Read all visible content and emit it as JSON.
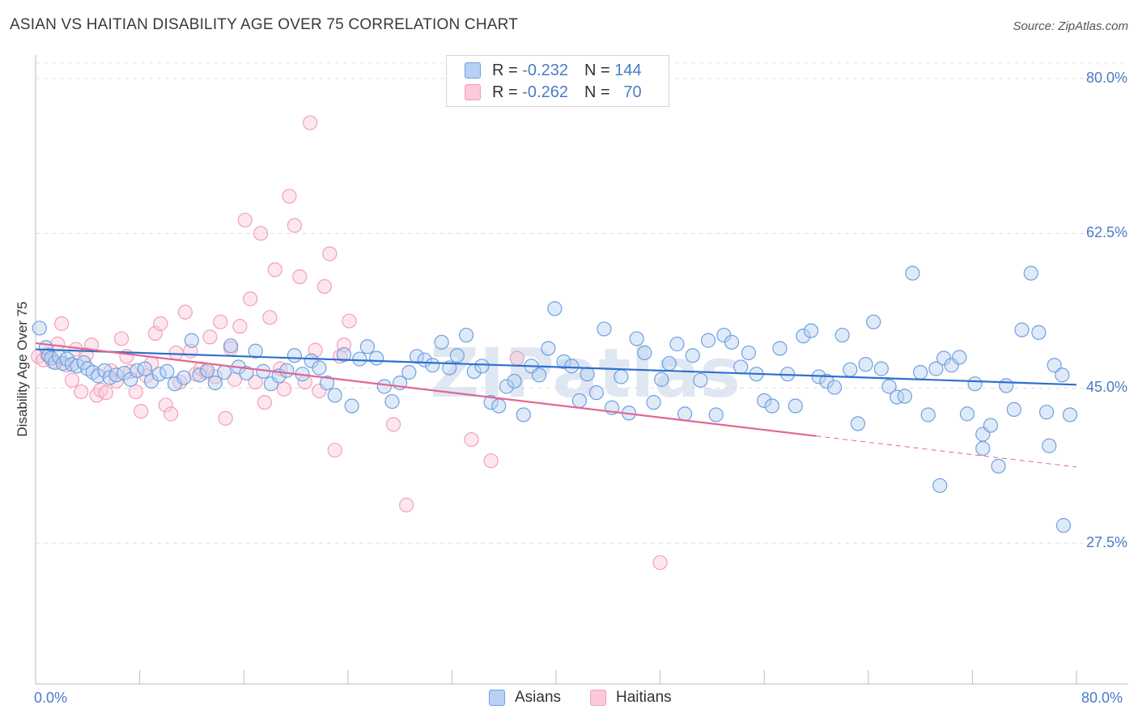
{
  "title": "ASIAN VS HAITIAN DISABILITY AGE OVER 75 CORRELATION CHART",
  "source": "Source: ZipAtlas.com",
  "chart_data": {
    "type": "scatter",
    "title": "ASIAN VS HAITIAN DISABILITY AGE OVER 75 CORRELATION CHART",
    "xlabel": "",
    "ylabel": "Disability Age Over 75",
    "xlim": [
      0,
      80
    ],
    "ylim": [
      10,
      82.5
    ],
    "x_tick_labels": [
      "0.0%",
      "80.0%"
    ],
    "y_ticks": [
      27.5,
      45.0,
      62.5,
      80.0
    ],
    "y_tick_labels": [
      "27.5%",
      "45.0%",
      "62.5%",
      "80.0%"
    ],
    "grid": "horizontal dashed",
    "legend_placement": "top-center",
    "colors": {
      "asians": "#6fa0e0",
      "asians_line": "#2f6fcf",
      "haitians": "#f0a0bc",
      "haitians_line": "#e06890"
    },
    "legend": [
      {
        "name": "Asians",
        "r_label": "R =",
        "r_value": "-0.232",
        "n_label": "N =",
        "n_value": "144"
      },
      {
        "name": "Haitians",
        "r_label": "R =",
        "r_value": "-0.262",
        "n_label": "N =",
        "n_value": "70"
      }
    ],
    "series": [
      {
        "name": "Asians",
        "trend": {
          "x": [
            0,
            80
          ],
          "y": [
            49.4,
            45.4
          ]
        },
        "points": [
          [
            0.3,
            51.8
          ],
          [
            0.8,
            49.6
          ],
          [
            1.0,
            48.7
          ],
          [
            1.2,
            48.4
          ],
          [
            1.5,
            47.9
          ],
          [
            1.8,
            48.6
          ],
          [
            2.1,
            47.8
          ],
          [
            2.4,
            48.3
          ],
          [
            2.8,
            47.7
          ],
          [
            3.2,
            47.5
          ],
          [
            3.7,
            47.9
          ],
          [
            4.0,
            47.2
          ],
          [
            4.4,
            46.8
          ],
          [
            4.8,
            46.4
          ],
          [
            5.3,
            47.0
          ],
          [
            5.7,
            46.2
          ],
          [
            6.2,
            46.5
          ],
          [
            6.8,
            46.7
          ],
          [
            7.3,
            46.0
          ],
          [
            7.8,
            47.0
          ],
          [
            8.4,
            47.2
          ],
          [
            8.9,
            45.8
          ],
          [
            9.5,
            46.6
          ],
          [
            10.1,
            46.9
          ],
          [
            10.7,
            45.5
          ],
          [
            11.4,
            46.2
          ],
          [
            12.0,
            50.4
          ],
          [
            12.6,
            46.5
          ],
          [
            13.2,
            47.0
          ],
          [
            13.8,
            45.6
          ],
          [
            14.5,
            46.8
          ],
          [
            15.0,
            49.8
          ],
          [
            15.6,
            47.4
          ],
          [
            16.2,
            46.7
          ],
          [
            16.9,
            49.2
          ],
          [
            17.5,
            46.9
          ],
          [
            18.1,
            45.5
          ],
          [
            18.7,
            46.4
          ],
          [
            19.3,
            47.0
          ],
          [
            19.9,
            48.7
          ],
          [
            20.5,
            46.6
          ],
          [
            21.2,
            48.1
          ],
          [
            21.8,
            47.3
          ],
          [
            22.4,
            45.6
          ],
          [
            23.0,
            44.2
          ],
          [
            23.7,
            48.8
          ],
          [
            24.3,
            43.0
          ],
          [
            24.9,
            48.3
          ],
          [
            25.5,
            49.7
          ],
          [
            26.2,
            48.4
          ],
          [
            26.8,
            45.2
          ],
          [
            27.4,
            43.5
          ],
          [
            28.0,
            45.6
          ],
          [
            28.7,
            46.8
          ],
          [
            29.3,
            48.6
          ],
          [
            29.9,
            48.2
          ],
          [
            30.5,
            47.6
          ],
          [
            31.2,
            50.2
          ],
          [
            31.8,
            47.3
          ],
          [
            32.4,
            48.7
          ],
          [
            33.1,
            51.0
          ],
          [
            33.7,
            46.9
          ],
          [
            34.3,
            47.5
          ],
          [
            35.0,
            43.4
          ],
          [
            35.6,
            43.0
          ],
          [
            36.2,
            45.2
          ],
          [
            36.8,
            45.8
          ],
          [
            37.5,
            42.0
          ],
          [
            38.1,
            47.5
          ],
          [
            38.7,
            46.5
          ],
          [
            39.4,
            49.5
          ],
          [
            39.9,
            54.0
          ],
          [
            40.6,
            48.0
          ],
          [
            41.2,
            47.5
          ],
          [
            41.8,
            43.6
          ],
          [
            42.4,
            46.6
          ],
          [
            43.1,
            44.5
          ],
          [
            43.7,
            51.7
          ],
          [
            44.3,
            42.8
          ],
          [
            45.0,
            46.3
          ],
          [
            45.6,
            42.2
          ],
          [
            46.2,
            50.6
          ],
          [
            46.8,
            49.0
          ],
          [
            47.5,
            43.4
          ],
          [
            48.1,
            46.0
          ],
          [
            48.7,
            47.8
          ],
          [
            49.3,
            50.0
          ],
          [
            49.9,
            42.1
          ],
          [
            50.5,
            48.7
          ],
          [
            51.1,
            45.9
          ],
          [
            51.7,
            50.4
          ],
          [
            52.3,
            42.0
          ],
          [
            52.9,
            51.0
          ],
          [
            53.5,
            50.2
          ],
          [
            54.2,
            47.4
          ],
          [
            54.8,
            49.0
          ],
          [
            55.4,
            46.6
          ],
          [
            56.0,
            43.6
          ],
          [
            56.6,
            43.0
          ],
          [
            57.2,
            49.5
          ],
          [
            57.8,
            46.6
          ],
          [
            58.4,
            43.0
          ],
          [
            59.0,
            50.9
          ],
          [
            59.6,
            51.5
          ],
          [
            60.2,
            46.3
          ],
          [
            60.8,
            45.8
          ],
          [
            61.4,
            45.1
          ],
          [
            62.0,
            51.0
          ],
          [
            62.6,
            47.1
          ],
          [
            63.2,
            41.0
          ],
          [
            63.8,
            47.7
          ],
          [
            64.4,
            52.5
          ],
          [
            65.0,
            47.2
          ],
          [
            65.6,
            45.2
          ],
          [
            66.2,
            44.0
          ],
          [
            66.8,
            44.1
          ],
          [
            67.4,
            58.0
          ],
          [
            68.0,
            46.8
          ],
          [
            68.6,
            42.0
          ],
          [
            69.2,
            47.2
          ],
          [
            69.8,
            48.4
          ],
          [
            70.4,
            47.6
          ],
          [
            71.0,
            48.5
          ],
          [
            71.6,
            42.1
          ],
          [
            72.2,
            45.5
          ],
          [
            72.8,
            39.8
          ],
          [
            73.4,
            40.8
          ],
          [
            74.0,
            36.2
          ],
          [
            74.6,
            45.3
          ],
          [
            75.2,
            42.6
          ],
          [
            75.8,
            51.6
          ],
          [
            76.5,
            58.0
          ],
          [
            77.1,
            51.3
          ],
          [
            77.7,
            42.3
          ],
          [
            78.3,
            47.6
          ],
          [
            78.9,
            46.5
          ],
          [
            79.5,
            42.0
          ],
          [
            69.5,
            34.0
          ],
          [
            72.8,
            38.2
          ],
          [
            77.9,
            38.5
          ],
          [
            79.0,
            29.5
          ]
        ]
      },
      {
        "name": "Haitians",
        "trend": {
          "x": [
            0,
            60
          ],
          "y": [
            50.1,
            39.6
          ]
        },
        "points": [
          [
            0.2,
            48.6
          ],
          [
            0.6,
            48.2
          ],
          [
            0.9,
            48.8
          ],
          [
            1.3,
            48.0
          ],
          [
            1.7,
            50.0
          ],
          [
            2.0,
            52.3
          ],
          [
            2.4,
            47.6
          ],
          [
            2.8,
            45.9
          ],
          [
            3.1,
            49.4
          ],
          [
            3.5,
            44.6
          ],
          [
            3.9,
            48.8
          ],
          [
            4.3,
            49.9
          ],
          [
            4.7,
            44.2
          ],
          [
            5.0,
            44.8
          ],
          [
            5.4,
            44.5
          ],
          [
            5.8,
            47.0
          ],
          [
            6.2,
            45.8
          ],
          [
            6.6,
            50.6
          ],
          [
            7.0,
            48.6
          ],
          [
            7.3,
            46.9
          ],
          [
            7.7,
            44.6
          ],
          [
            8.1,
            42.4
          ],
          [
            8.5,
            46.4
          ],
          [
            8.9,
            47.8
          ],
          [
            9.2,
            51.2
          ],
          [
            9.6,
            52.3
          ],
          [
            10.0,
            43.1
          ],
          [
            10.4,
            42.1
          ],
          [
            10.8,
            49.0
          ],
          [
            11.1,
            45.7
          ],
          [
            11.5,
            53.6
          ],
          [
            11.9,
            49.2
          ],
          [
            12.3,
            46.6
          ],
          [
            12.7,
            47.2
          ],
          [
            13.1,
            46.8
          ],
          [
            13.4,
            50.8
          ],
          [
            13.8,
            46.3
          ],
          [
            14.2,
            52.5
          ],
          [
            14.6,
            41.6
          ],
          [
            15.0,
            49.5
          ],
          [
            15.3,
            46.0
          ],
          [
            15.7,
            52.0
          ],
          [
            16.1,
            64.0
          ],
          [
            16.5,
            55.1
          ],
          [
            16.9,
            45.7
          ],
          [
            17.3,
            62.5
          ],
          [
            17.6,
            43.4
          ],
          [
            18.0,
            53.0
          ],
          [
            18.4,
            58.4
          ],
          [
            18.8,
            47.2
          ],
          [
            19.1,
            44.9
          ],
          [
            19.5,
            66.7
          ],
          [
            19.9,
            63.4
          ],
          [
            20.3,
            57.6
          ],
          [
            20.7,
            45.7
          ],
          [
            21.1,
            75.0
          ],
          [
            21.5,
            49.3
          ],
          [
            21.8,
            44.7
          ],
          [
            22.2,
            56.5
          ],
          [
            22.6,
            60.2
          ],
          [
            23.0,
            38.0
          ],
          [
            23.4,
            48.6
          ],
          [
            23.7,
            49.9
          ],
          [
            24.1,
            52.6
          ],
          [
            27.5,
            40.9
          ],
          [
            28.5,
            31.8
          ],
          [
            33.5,
            39.2
          ],
          [
            35.0,
            36.8
          ],
          [
            37.0,
            48.4
          ],
          [
            48.0,
            25.3
          ]
        ]
      }
    ]
  },
  "legend_bottom": {
    "asians": "Asians",
    "haitians": "Haitians"
  }
}
